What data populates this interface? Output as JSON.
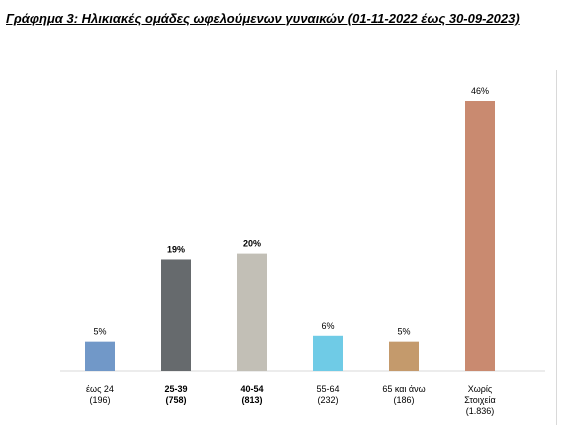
{
  "title": "Γράφημα 3: Ηλικιακές ομάδες ωφελούμενων γυναικών (01-11-2022 έως 30-09-2023)",
  "chart_data": {
    "type": "bar",
    "categories": [
      [
        "έως 24",
        "(196)"
      ],
      [
        "25-39",
        "(758)"
      ],
      [
        "40-54",
        "(813)"
      ],
      [
        "55-64",
        "(232)"
      ],
      [
        "65 και άνω",
        "(186)"
      ],
      [
        "Χωρίς",
        "Στοιχεία",
        "(1.836)"
      ]
    ],
    "counts": [
      196,
      758,
      813,
      232,
      186,
      1836
    ],
    "values": [
      5,
      19,
      20,
      6,
      5,
      46
    ],
    "value_labels": [
      "5%",
      "19%",
      "20%",
      "6%",
      "5%",
      "46%"
    ],
    "bold_categories": [
      false,
      true,
      true,
      false,
      false,
      false
    ],
    "bold_value_labels": [
      false,
      true,
      true,
      false,
      false,
      false
    ],
    "colors": [
      "#7198c8",
      "#666a6d",
      "#c2bfb6",
      "#6fcbe6",
      "#c49a6c",
      "#c98a70"
    ],
    "ylim": [
      0,
      46
    ],
    "grid": false,
    "legend": "none"
  }
}
